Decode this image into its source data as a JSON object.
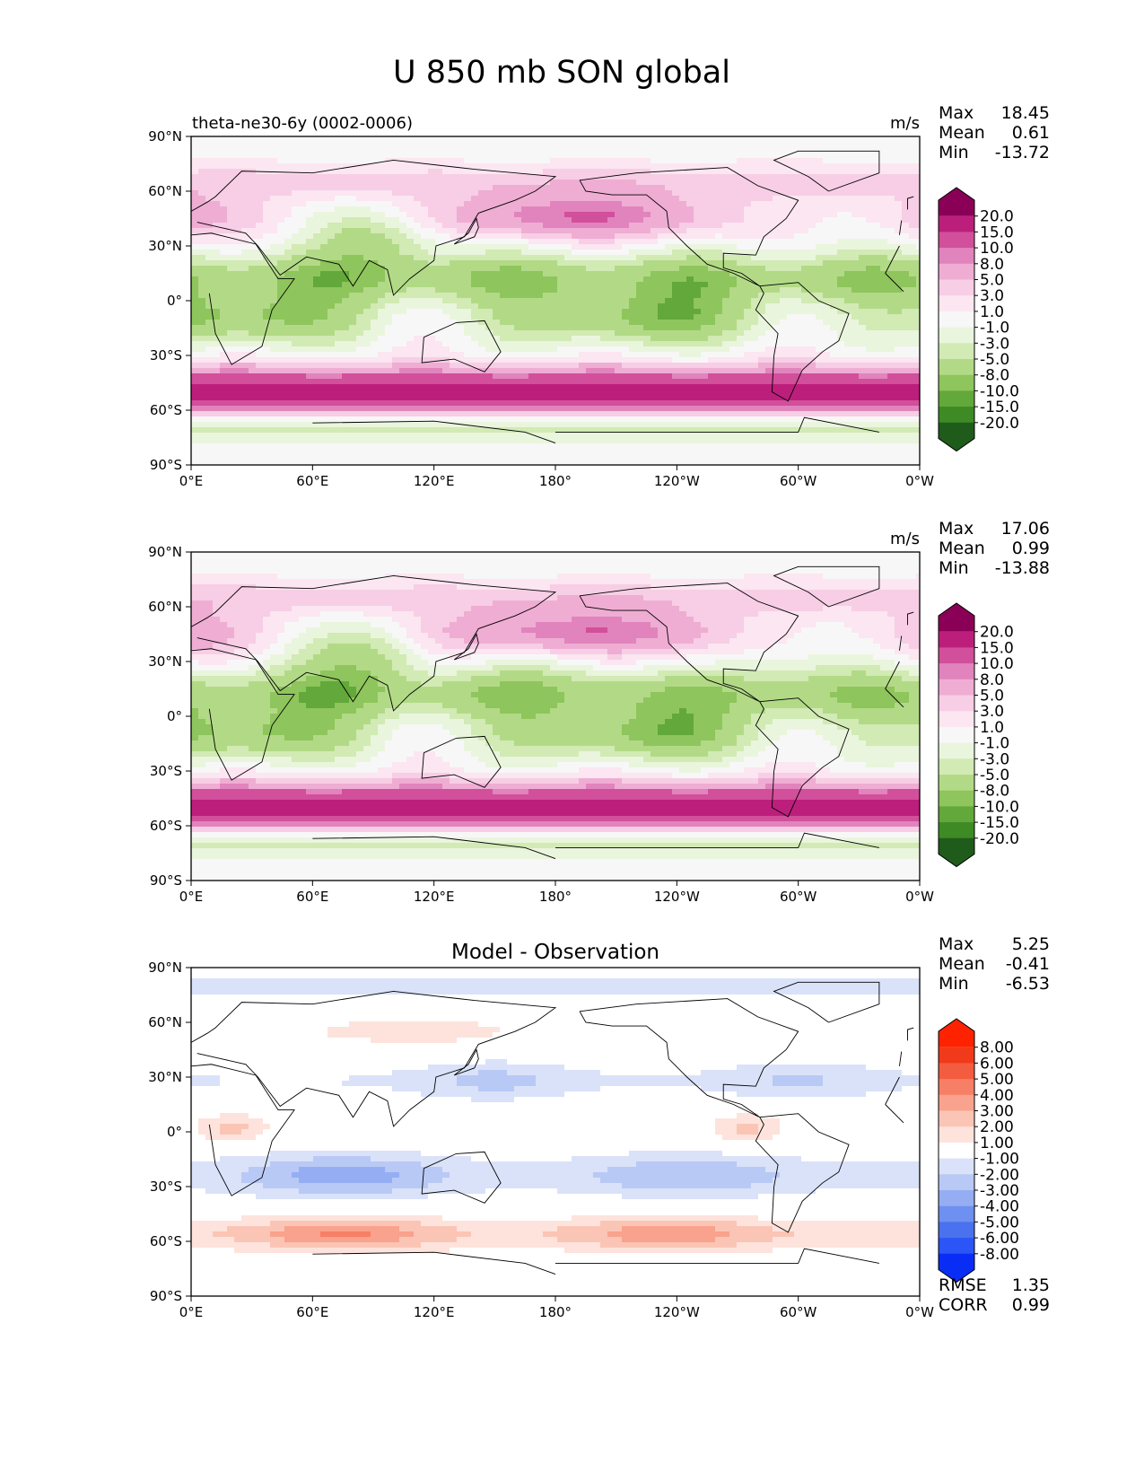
{
  "figure_title": "U 850 mb SON global",
  "colors": {
    "wind": [
      "#1f5c1b",
      "#3e8a25",
      "#62a83a",
      "#8ec55c",
      "#b2da86",
      "#d2eab4",
      "#eaf5dd",
      "#f7f7f7",
      "#fbe6f1",
      "#f7cee5",
      "#efadd3",
      "#e184bd",
      "#d24f9b",
      "#bc1f7b",
      "#8a0057"
    ],
    "diff": [
      "#0a2df5",
      "#2c55f7",
      "#4a71ee",
      "#6e90f0",
      "#95aef3",
      "#b9c9f5",
      "#d9e2f8",
      "#ffffff",
      "#fde3dc",
      "#fbc5b6",
      "#f9a28d",
      "#f77f66",
      "#f45c3f",
      "#f03a1a",
      "#ff2200"
    ]
  },
  "chart_data": [
    {
      "type": "heatmap",
      "title": "theta-ne30-6y (0002-0006)",
      "units": "m/s",
      "stats": {
        "max_label": "Max",
        "max": "18.45",
        "mean_label": "Mean",
        "mean": "0.61",
        "min_label": "Min",
        "min": "-13.72"
      },
      "xticks": [
        "0°E",
        "60°E",
        "120°E",
        "180°",
        "120°W",
        "60°W",
        "0°W"
      ],
      "yticks": [
        "90°N",
        "60°N",
        "30°N",
        "0°",
        "30°S",
        "60°S",
        "90°S"
      ],
      "xlim": [
        0,
        360
      ],
      "ylim": [
        -90,
        90
      ],
      "colorbar": {
        "palette": "wind",
        "levels": [
          "20.0",
          "15.0",
          "10.0",
          "8.0",
          "5.0",
          "3.0",
          "1.0",
          "-1.0",
          "-3.0",
          "-5.0",
          "-8.0",
          "-10.0",
          "-15.0",
          "-20.0"
        ]
      },
      "field": "model"
    },
    {
      "type": "heatmap",
      "title": "",
      "units": "m/s",
      "stats": {
        "max_label": "Max",
        "max": "17.06",
        "mean_label": "Mean",
        "mean": "0.99",
        "min_label": "Min",
        "min": "-13.88"
      },
      "xticks": [
        "0°E",
        "60°E",
        "120°E",
        "180°",
        "120°W",
        "60°W",
        "0°W"
      ],
      "yticks": [
        "90°N",
        "60°N",
        "30°N",
        "0°",
        "30°S",
        "60°S",
        "90°S"
      ],
      "xlim": [
        0,
        360
      ],
      "ylim": [
        -90,
        90
      ],
      "colorbar": {
        "palette": "wind",
        "levels": [
          "20.0",
          "15.0",
          "10.0",
          "8.0",
          "5.0",
          "3.0",
          "1.0",
          "-1.0",
          "-3.0",
          "-5.0",
          "-8.0",
          "-10.0",
          "-15.0",
          "-20.0"
        ]
      },
      "field": "obs"
    },
    {
      "type": "heatmap",
      "title": "Model - Observation",
      "units": "",
      "stats": {
        "max_label": "Max",
        "max": "5.25",
        "mean_label": "Mean",
        "mean": "-0.41",
        "min_label": "Min",
        "min": "-6.53"
      },
      "xticks": [
        "0°E",
        "60°E",
        "120°E",
        "180°",
        "120°W",
        "60°W",
        "0°W"
      ],
      "yticks": [
        "90°N",
        "60°N",
        "30°N",
        "0°",
        "30°S",
        "60°S",
        "90°S"
      ],
      "xlim": [
        0,
        360
      ],
      "ylim": [
        -90,
        90
      ],
      "colorbar": {
        "palette": "diff",
        "levels": [
          "8.00",
          "6.00",
          "5.00",
          "4.00",
          "3.00",
          "2.00",
          "1.00",
          "-1.00",
          "-2.00",
          "-3.00",
          "-4.00",
          "-5.00",
          "-6.00",
          "-8.00"
        ]
      },
      "metrics": {
        "rmse_label": "RMSE",
        "rmse": "1.35",
        "corr_label": "CORR",
        "corr": "0.99"
      },
      "field": "diff"
    }
  ]
}
